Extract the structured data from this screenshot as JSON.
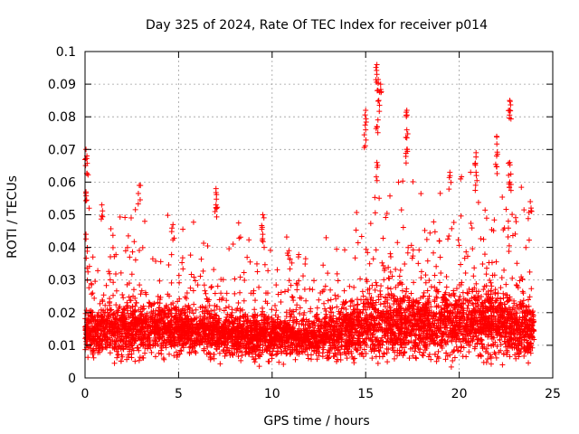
{
  "chart_data": {
    "type": "scatter",
    "title": "Day 325 of 2024, Rate Of TEC Index for receiver p014",
    "xlabel": "GPS time / hours",
    "ylabel": "ROTI / TECUs",
    "xlim": [
      0,
      25
    ],
    "ylim": [
      0,
      0.1
    ],
    "xticks": [
      0,
      5,
      10,
      15,
      20,
      25
    ],
    "xtick_labels": [
      "0",
      "5",
      "10",
      "15",
      "20",
      "25"
    ],
    "yticks": [
      0,
      0.01,
      0.02,
      0.03,
      0.04,
      0.05,
      0.06,
      0.07,
      0.08,
      0.09,
      0.1
    ],
    "ytick_labels": [
      "0",
      "0.01",
      "0.02",
      "0.03",
      "0.04",
      "0.05",
      "0.06",
      "0.07",
      "0.08",
      "0.09",
      "0.1"
    ],
    "grid": true,
    "marker": "+",
    "color": "#ff0000",
    "series": [
      {
        "name": "ROTI",
        "baseline": [
          {
            "x": 0,
            "median": 0.014,
            "spread": 0.006
          },
          {
            "x": 2,
            "median": 0.015,
            "spread": 0.007
          },
          {
            "x": 4,
            "median": 0.015,
            "spread": 0.007
          },
          {
            "x": 6,
            "median": 0.014,
            "spread": 0.006
          },
          {
            "x": 8,
            "median": 0.013,
            "spread": 0.006
          },
          {
            "x": 10,
            "median": 0.013,
            "spread": 0.006
          },
          {
            "x": 12,
            "median": 0.012,
            "spread": 0.005
          },
          {
            "x": 14,
            "median": 0.014,
            "spread": 0.007
          },
          {
            "x": 16,
            "median": 0.017,
            "spread": 0.009
          },
          {
            "x": 18,
            "median": 0.016,
            "spread": 0.008
          },
          {
            "x": 20,
            "median": 0.017,
            "spread": 0.009
          },
          {
            "x": 22,
            "median": 0.017,
            "spread": 0.009
          },
          {
            "x": 24,
            "median": 0.014,
            "spread": 0.007
          }
        ],
        "notable_points": [
          {
            "x": 0.05,
            "y": 0.07
          },
          {
            "x": 0.1,
            "y": 0.068
          },
          {
            "x": 0.05,
            "y": 0.057
          },
          {
            "x": 0.05,
            "y": 0.044
          },
          {
            "x": 0.9,
            "y": 0.053
          },
          {
            "x": 2.9,
            "y": 0.059
          },
          {
            "x": 4.7,
            "y": 0.047
          },
          {
            "x": 7.0,
            "y": 0.058
          },
          {
            "x": 7.0,
            "y": 0.053
          },
          {
            "x": 9.5,
            "y": 0.05
          },
          {
            "x": 9.5,
            "y": 0.044
          },
          {
            "x": 10.9,
            "y": 0.039
          },
          {
            "x": 15.0,
            "y": 0.082
          },
          {
            "x": 15.0,
            "y": 0.076
          },
          {
            "x": 15.6,
            "y": 0.096
          },
          {
            "x": 15.6,
            "y": 0.093
          },
          {
            "x": 15.8,
            "y": 0.09
          },
          {
            "x": 15.7,
            "y": 0.085
          },
          {
            "x": 15.6,
            "y": 0.077
          },
          {
            "x": 15.6,
            "y": 0.066
          },
          {
            "x": 17.2,
            "y": 0.082
          },
          {
            "x": 17.2,
            "y": 0.076
          },
          {
            "x": 17.2,
            "y": 0.07
          },
          {
            "x": 19.5,
            "y": 0.063
          },
          {
            "x": 20.9,
            "y": 0.069
          },
          {
            "x": 20.9,
            "y": 0.063
          },
          {
            "x": 22.0,
            "y": 0.074
          },
          {
            "x": 22.0,
            "y": 0.068
          },
          {
            "x": 22.7,
            "y": 0.085
          },
          {
            "x": 22.7,
            "y": 0.082
          },
          {
            "x": 22.7,
            "y": 0.066
          },
          {
            "x": 22.7,
            "y": 0.06
          },
          {
            "x": 23.8,
            "y": 0.054
          }
        ]
      }
    ]
  }
}
